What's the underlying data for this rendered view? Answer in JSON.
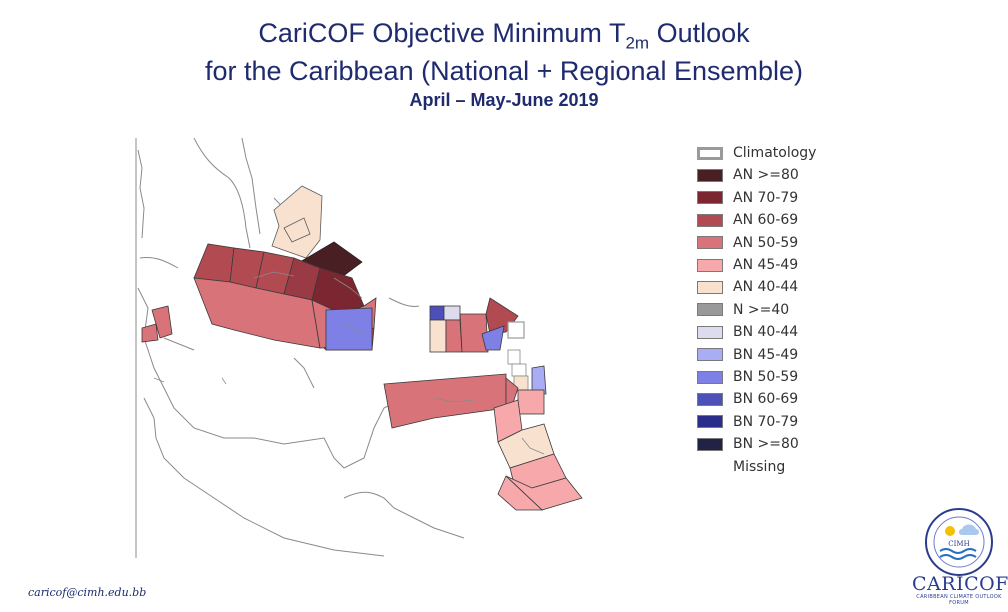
{
  "title": {
    "line1_main": "CariCOF Objective Minimum T",
    "line1_sub": "2m",
    "line1_end": " Outlook",
    "line2": "for the Caribbean (National + Regional Ensemble)",
    "line3": "April – May-June 2019"
  },
  "legend": {
    "items": [
      {
        "label": "Climatology",
        "color": "#ffffff"
      },
      {
        "label": "AN  >=80",
        "color": "#4a1f24"
      },
      {
        "label": "AN 70-79",
        "color": "#7b2630"
      },
      {
        "label": "AN 60-69",
        "color": "#b24a52"
      },
      {
        "label": "AN 50-59",
        "color": "#d8737a"
      },
      {
        "label": "AN 45-49",
        "color": "#f6a8ab"
      },
      {
        "label": "AN 40-44",
        "color": "#f8e2cf"
      },
      {
        "label": "N >=40",
        "color": "#999999"
      },
      {
        "label": "BN 40-44",
        "color": "#dcdcee"
      },
      {
        "label": "BN 45-49",
        "color": "#a9adf4"
      },
      {
        "label": "BN 50-59",
        "color": "#7f80e6"
      },
      {
        "label": "BN 60-69",
        "color": "#4d50b8"
      },
      {
        "label": "BN 70-79",
        "color": "#2a2d8a"
      },
      {
        "label": "BN  >=80",
        "color": "#222244"
      },
      {
        "label": "Missing",
        "color": "#ffffff"
      }
    ]
  },
  "footer": {
    "email": "caricof@cimh.edu.bb"
  },
  "logos": {
    "cimh": "CIMH",
    "caricof": "CARICOF",
    "caricof_tagline": "CARIBBEAN CLIMATE OUTLOOK FORUM"
  },
  "colors": {
    "land": "#ffffff",
    "coast": "#8a8a8a",
    "border": "#3a3a3a",
    "title": "#1f2b6e"
  }
}
